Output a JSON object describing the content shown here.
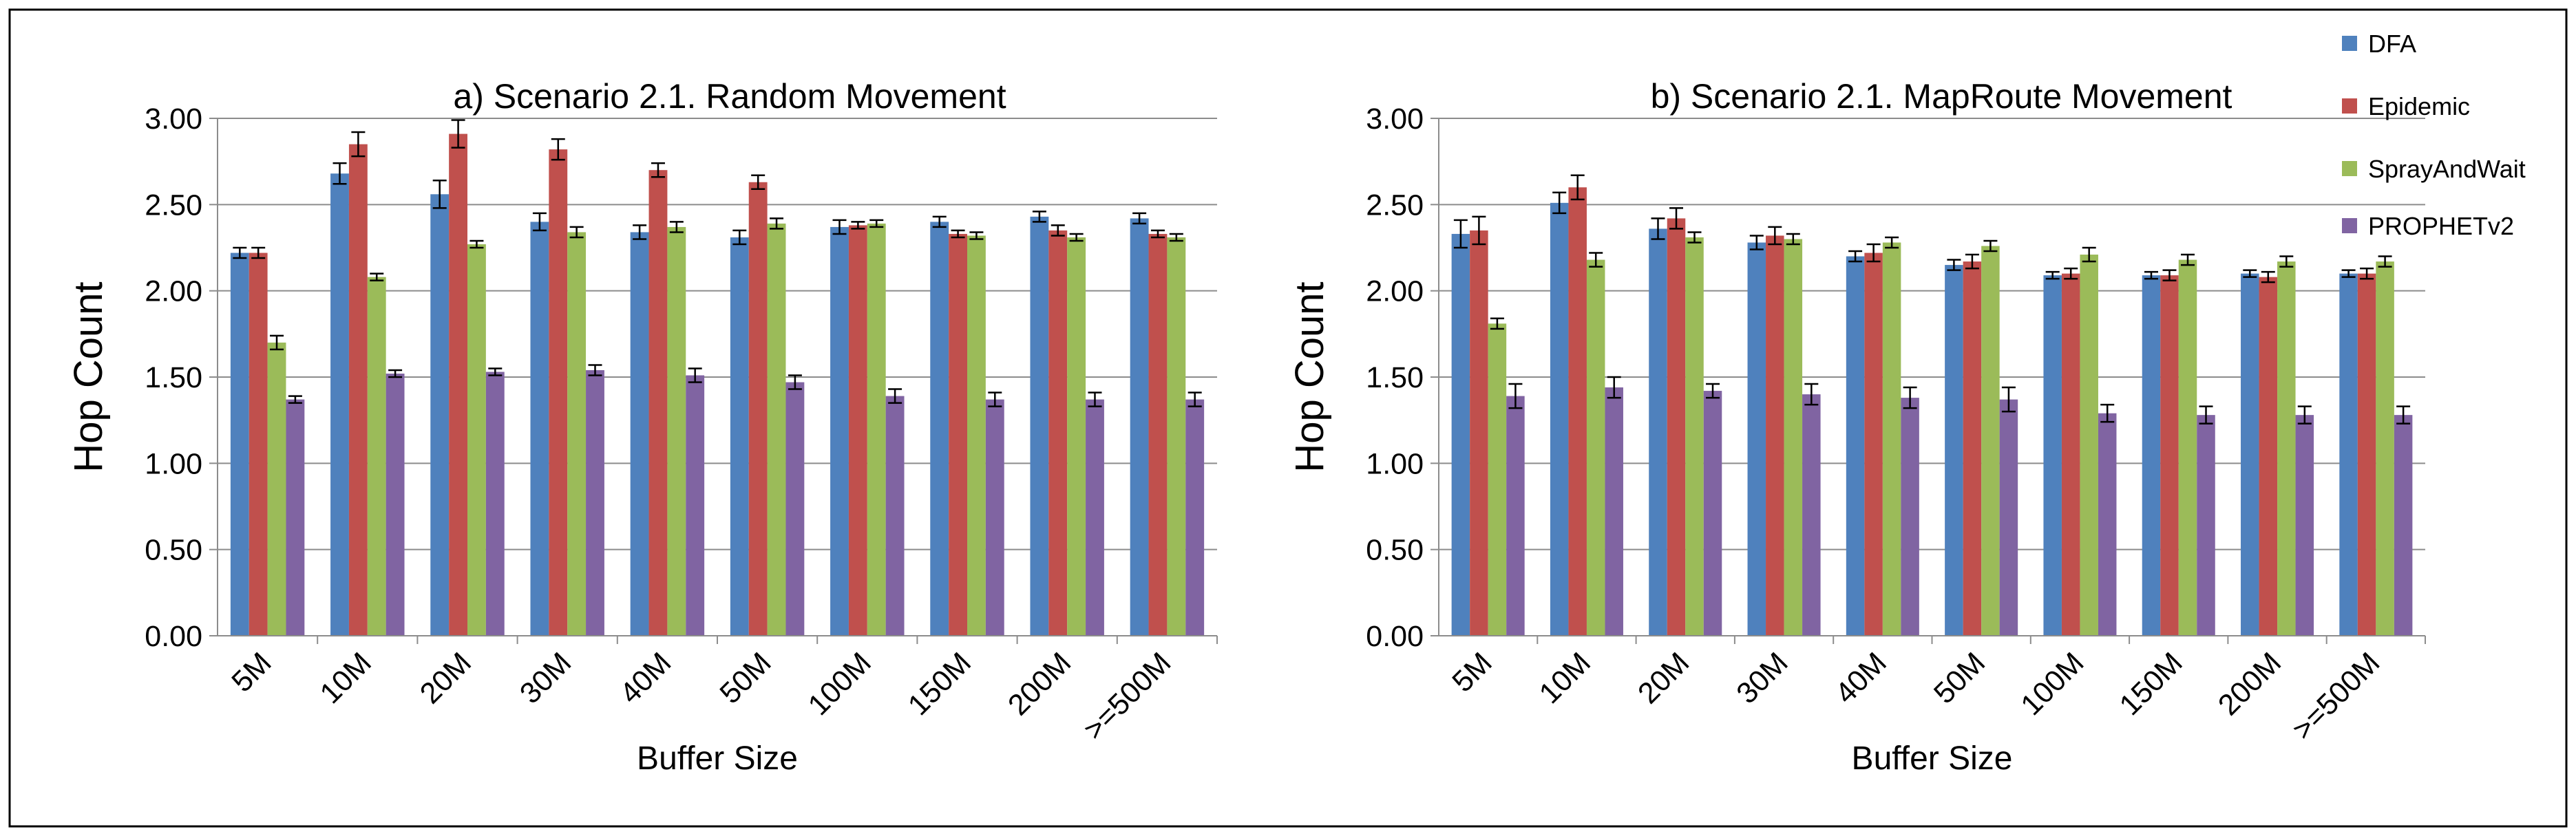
{
  "colors": {
    "DFA": "#4F81BD",
    "Epidemic": "#C0504D",
    "SprayAndWait": "#9BBB59",
    "PROPHETv2": "#8064A2"
  },
  "legend": {
    "placement": "top-right",
    "entries": [
      "DFA",
      "Epidemic",
      "SprayAndWait",
      "PROPHETv2"
    ]
  },
  "chart_data": [
    {
      "type": "bar",
      "title": "a) Scenario 2.1. Random Movement",
      "xlabel": "Buffer Size",
      "ylabel": "Hop Count",
      "ylim": [
        0,
        3.0
      ],
      "yticks": [
        "0.00",
        "0.50",
        "1.00",
        "1.50",
        "2.00",
        "2.50",
        "3.00"
      ],
      "grid": "horizontal",
      "categories": [
        "5M",
        "10M",
        "20M",
        "30M",
        "40M",
        "50M",
        "100M",
        "150M",
        "200M",
        ">=500M"
      ],
      "series": [
        {
          "name": "DFA",
          "values": [
            2.22,
            2.68,
            2.56,
            2.4,
            2.34,
            2.31,
            2.37,
            2.4,
            2.43,
            2.42
          ],
          "errors": [
            0.03,
            0.06,
            0.08,
            0.05,
            0.04,
            0.04,
            0.04,
            0.03,
            0.03,
            0.03
          ]
        },
        {
          "name": "Epidemic",
          "values": [
            2.22,
            2.85,
            2.91,
            2.82,
            2.7,
            2.63,
            2.38,
            2.33,
            2.35,
            2.33
          ],
          "errors": [
            0.03,
            0.07,
            0.08,
            0.06,
            0.04,
            0.04,
            0.02,
            0.02,
            0.03,
            0.02
          ]
        },
        {
          "name": "SprayAndWait",
          "values": [
            1.7,
            2.08,
            2.27,
            2.34,
            2.37,
            2.39,
            2.39,
            2.32,
            2.31,
            2.31
          ],
          "errors": [
            0.04,
            0.02,
            0.02,
            0.03,
            0.03,
            0.03,
            0.02,
            0.02,
            0.02,
            0.02
          ]
        },
        {
          "name": "PROPHETv2",
          "values": [
            1.37,
            1.52,
            1.53,
            1.54,
            1.51,
            1.47,
            1.39,
            1.37,
            1.37,
            1.37
          ],
          "errors": [
            0.02,
            0.02,
            0.02,
            0.03,
            0.04,
            0.04,
            0.04,
            0.04,
            0.04,
            0.04
          ]
        }
      ]
    },
    {
      "type": "bar",
      "title": "b) Scenario 2.1. MapRoute Movement",
      "xlabel": "Buffer Size",
      "ylabel": "Hop Count",
      "ylim": [
        0,
        3.0
      ],
      "yticks": [
        "0.00",
        "0.50",
        "1.00",
        "1.50",
        "2.00",
        "2.50",
        "3.00"
      ],
      "grid": "horizontal",
      "categories": [
        "5M",
        "10M",
        "20M",
        "30M",
        "40M",
        "50M",
        "100M",
        "150M",
        "200M",
        ">=500M"
      ],
      "series": [
        {
          "name": "DFA",
          "values": [
            2.33,
            2.51,
            2.36,
            2.28,
            2.2,
            2.15,
            2.09,
            2.09,
            2.1,
            2.1
          ],
          "errors": [
            0.08,
            0.06,
            0.06,
            0.04,
            0.03,
            0.03,
            0.02,
            0.02,
            0.02,
            0.02
          ]
        },
        {
          "name": "Epidemic",
          "values": [
            2.35,
            2.6,
            2.42,
            2.32,
            2.22,
            2.17,
            2.1,
            2.09,
            2.08,
            2.1
          ],
          "errors": [
            0.08,
            0.07,
            0.06,
            0.05,
            0.05,
            0.04,
            0.03,
            0.03,
            0.03,
            0.03
          ]
        },
        {
          "name": "SprayAndWait",
          "values": [
            1.81,
            2.18,
            2.31,
            2.3,
            2.28,
            2.26,
            2.21,
            2.18,
            2.17,
            2.17
          ],
          "errors": [
            0.03,
            0.04,
            0.03,
            0.03,
            0.03,
            0.03,
            0.04,
            0.03,
            0.03,
            0.03
          ]
        },
        {
          "name": "PROPHETv2",
          "values": [
            1.39,
            1.44,
            1.42,
            1.4,
            1.38,
            1.37,
            1.29,
            1.28,
            1.28,
            1.28
          ],
          "errors": [
            0.07,
            0.06,
            0.04,
            0.06,
            0.06,
            0.07,
            0.05,
            0.05,
            0.05,
            0.05
          ]
        }
      ]
    }
  ]
}
